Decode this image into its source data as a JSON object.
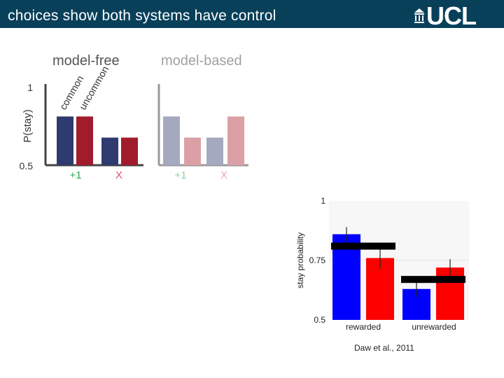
{
  "slide": {
    "title": "choices show both systems have control",
    "logo_text": "UCL",
    "citation": "Daw et al., 2011"
  },
  "colors": {
    "header_bg": "#08405a",
    "common_strong": "#2f3a6e",
    "uncommon_strong": "#a01c2c",
    "common_faded": "#a4a9bf",
    "uncommon_faded": "#dba0a6",
    "bar_blue": "#0000ff",
    "bar_red": "#ff0000",
    "reward_green": "#2eaa50",
    "x_red": "#e0506a"
  },
  "chart_data": [
    {
      "type": "bar",
      "title": "model-free",
      "ylabel": "P(stay)",
      "ylim": [
        0.5,
        1
      ],
      "yticks": [
        "1",
        "0.5"
      ],
      "categories": [
        "+1",
        "X"
      ],
      "bar_labels": [
        "common",
        "uncommon"
      ],
      "series": [
        {
          "name": "common",
          "values": [
            0.8,
            0.67
          ]
        },
        {
          "name": "uncommon",
          "values": [
            0.8,
            0.67
          ]
        }
      ]
    },
    {
      "type": "bar",
      "title": "model-based",
      "ylim": [
        0.5,
        1
      ],
      "categories": [
        "+1",
        "X"
      ],
      "series": [
        {
          "name": "common",
          "values": [
            0.8,
            0.67
          ]
        },
        {
          "name": "uncommon",
          "values": [
            0.67,
            0.8
          ]
        }
      ]
    },
    {
      "type": "bar",
      "ylabel": "stay probability",
      "ylim": [
        0.5,
        1
      ],
      "yticks": [
        "1",
        "0.75",
        "0.5"
      ],
      "categories": [
        "rewarded",
        "unrewarded"
      ],
      "series": [
        {
          "name": "common",
          "values": [
            0.86,
            0.63
          ]
        },
        {
          "name": "uncommon",
          "values": [
            0.76,
            0.72
          ]
        }
      ],
      "errors": [
        [
          0.03,
          0.035
        ],
        [
          0.045,
          0.035
        ]
      ],
      "reference_lines": [
        0.81,
        0.67
      ]
    }
  ]
}
